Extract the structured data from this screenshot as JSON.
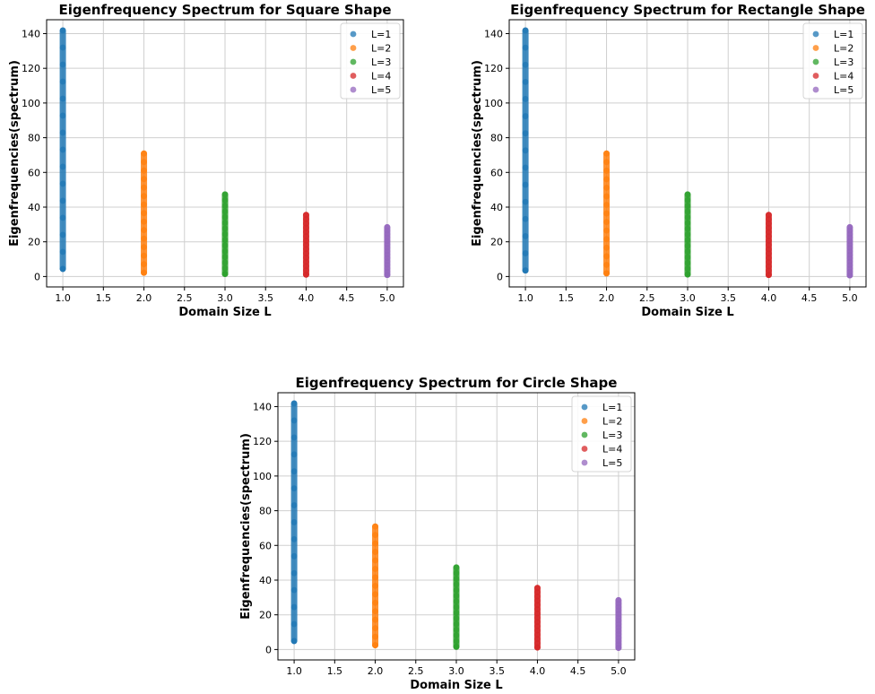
{
  "chart_data": [
    {
      "type": "scatter",
      "title": "Eigenfrequency Spectrum for Square Shape",
      "xlabel": "Domain Size L",
      "ylabel": "Eigenfrequencies(spectrum)",
      "xlim": [
        0.8,
        5.2
      ],
      "ylim": [
        -6,
        148
      ],
      "xticks": [
        "1.0",
        "1.5",
        "2.0",
        "2.5",
        "3.0",
        "3.5",
        "4.0",
        "4.5",
        "5.0"
      ],
      "yticks": [
        "0",
        "20",
        "40",
        "60",
        "80",
        "100",
        "120",
        "140"
      ],
      "grid": true,
      "legend_position": "top-right",
      "series": [
        {
          "name": "L=1",
          "x": 1.0,
          "y_min": 4.4,
          "y_max": 141.8,
          "color": "#1f77b4"
        },
        {
          "name": "L=2",
          "x": 2.0,
          "y_min": 2.2,
          "y_max": 70.9,
          "color": "#ff7f0e"
        },
        {
          "name": "L=3",
          "x": 3.0,
          "y_min": 1.5,
          "y_max": 47.3,
          "color": "#2ca02c"
        },
        {
          "name": "L=4",
          "x": 4.0,
          "y_min": 1.1,
          "y_max": 35.5,
          "color": "#d62728"
        },
        {
          "name": "L=5",
          "x": 5.0,
          "y_min": 0.9,
          "y_max": 28.4,
          "color": "#9467bd"
        }
      ]
    },
    {
      "type": "scatter",
      "title": "Eigenfrequency Spectrum for Rectangle Shape",
      "xlabel": "Domain Size L",
      "ylabel": "Eigenfrequencies(spectrum)",
      "xlim": [
        0.8,
        5.2
      ],
      "ylim": [
        -6,
        148
      ],
      "xticks": [
        "1.0",
        "1.5",
        "2.0",
        "2.5",
        "3.0",
        "3.5",
        "4.0",
        "4.5",
        "5.0"
      ],
      "yticks": [
        "0",
        "20",
        "40",
        "60",
        "80",
        "100",
        "120",
        "140"
      ],
      "grid": true,
      "legend_position": "top-right",
      "series": [
        {
          "name": "L=1",
          "x": 1.0,
          "y_min": 3.5,
          "y_max": 141.8,
          "color": "#1f77b4"
        },
        {
          "name": "L=2",
          "x": 2.0,
          "y_min": 1.8,
          "y_max": 70.9,
          "color": "#ff7f0e"
        },
        {
          "name": "L=3",
          "x": 3.0,
          "y_min": 1.2,
          "y_max": 47.3,
          "color": "#2ca02c"
        },
        {
          "name": "L=4",
          "x": 4.0,
          "y_min": 0.9,
          "y_max": 35.5,
          "color": "#d62728"
        },
        {
          "name": "L=5",
          "x": 5.0,
          "y_min": 0.7,
          "y_max": 28.4,
          "color": "#9467bd"
        }
      ]
    },
    {
      "type": "scatter",
      "title": "Eigenfrequency Spectrum for Circle Shape",
      "xlabel": "Domain Size L",
      "ylabel": "Eigenfrequencies(spectrum)",
      "xlim": [
        0.8,
        5.2
      ],
      "ylim": [
        -6,
        148
      ],
      "xticks": [
        "1.0",
        "1.5",
        "2.0",
        "2.5",
        "3.0",
        "3.5",
        "4.0",
        "4.5",
        "5.0"
      ],
      "yticks": [
        "0",
        "20",
        "40",
        "60",
        "80",
        "100",
        "120",
        "140"
      ],
      "grid": true,
      "legend_position": "top-right",
      "series": [
        {
          "name": "L=1",
          "x": 1.0,
          "y_min": 4.9,
          "y_max": 141.8,
          "color": "#1f77b4"
        },
        {
          "name": "L=2",
          "x": 2.0,
          "y_min": 2.5,
          "y_max": 70.9,
          "color": "#ff7f0e"
        },
        {
          "name": "L=3",
          "x": 3.0,
          "y_min": 1.6,
          "y_max": 47.3,
          "color": "#2ca02c"
        },
        {
          "name": "L=4",
          "x": 4.0,
          "y_min": 1.2,
          "y_max": 35.5,
          "color": "#d62728"
        },
        {
          "name": "L=5",
          "x": 5.0,
          "y_min": 1.0,
          "y_max": 28.4,
          "color": "#9467bd"
        }
      ]
    }
  ]
}
